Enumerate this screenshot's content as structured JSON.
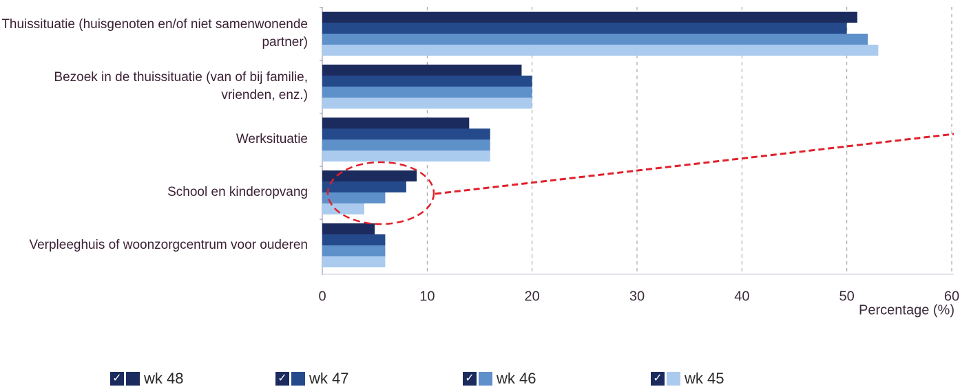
{
  "chart_data": {
    "type": "hbar",
    "categories": [
      "Thuissituatie (huisgenoten en/of niet samenwonende partner)",
      "Bezoek in de thuissituatie (van of bij familie, vrienden, enz.)",
      "Werksituatie",
      "School en kinderopvang",
      "Verpleeghuis of woonzorgcentrum voor ouderen"
    ],
    "series": [
      {
        "name": "wk 48",
        "color": "#1c2b5e",
        "values": [
          51,
          19,
          14,
          9,
          5
        ]
      },
      {
        "name": "wk 47",
        "color": "#244a8c",
        "values": [
          50,
          20,
          16,
          8,
          6
        ]
      },
      {
        "name": "wk 46",
        "color": "#5e90c9",
        "values": [
          52,
          20,
          16,
          6,
          6
        ]
      },
      {
        "name": "wk 45",
        "color": "#aacbee",
        "values": [
          53,
          20,
          16,
          4,
          6
        ]
      }
    ],
    "x_label": "Percentage (%)",
    "xlim": [
      0,
      60
    ],
    "xticks": [
      0,
      10,
      20,
      30,
      40,
      50,
      60
    ],
    "grid": true
  }
}
